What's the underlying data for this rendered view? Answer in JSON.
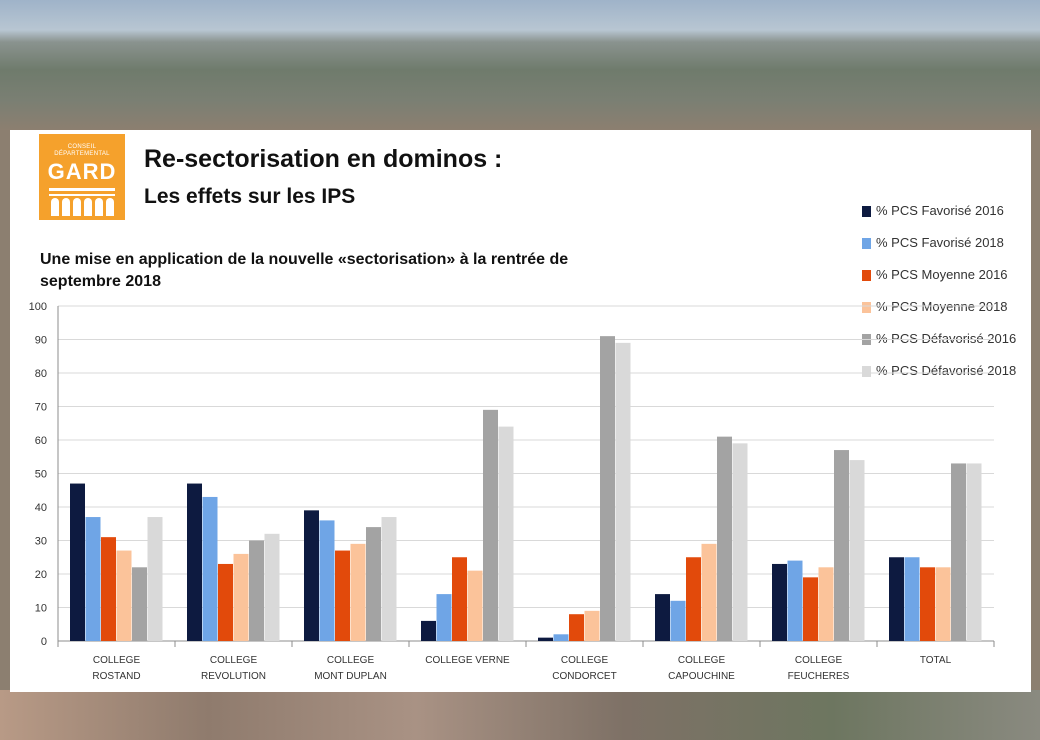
{
  "header": {
    "logo_top_line1": "CONSEIL",
    "logo_top_line2": "DÉPARTEMENTAL",
    "logo_main": "GARD",
    "title": "Re-sectorisation en dominos :",
    "subtitle": "Les effets sur les IPS",
    "description": "Une mise en application de la nouvelle «sectorisation» à la rentrée de septembre 2018"
  },
  "colors": {
    "brand_orange": "#f5a12c",
    "panel": "#ffffff"
  },
  "chart_data": {
    "type": "bar",
    "title": "",
    "xlabel": "",
    "ylabel": "",
    "ylim": [
      0,
      100
    ],
    "yticks": [
      0,
      10,
      20,
      30,
      40,
      50,
      60,
      70,
      80,
      90,
      100
    ],
    "grid": true,
    "legend_position": "right",
    "categories": [
      [
        "COLLEGE",
        "ROSTAND"
      ],
      [
        "COLLEGE",
        "REVOLUTION"
      ],
      [
        "COLLEGE",
        "MONT DUPLAN"
      ],
      [
        "COLLEGE VERNE"
      ],
      [
        "COLLEGE",
        "CONDORCET"
      ],
      [
        "COLLEGE",
        "CAPOUCHINE"
      ],
      [
        "COLLEGE",
        "FEUCHERES"
      ],
      [
        "TOTAL"
      ]
    ],
    "series": [
      {
        "name": "% PCS Favorisé 2016",
        "color": "#0d1a40",
        "values": [
          47,
          47,
          39,
          6,
          1,
          14,
          23,
          25
        ]
      },
      {
        "name": "% PCS Favorisé 2018",
        "color": "#6fa5e6",
        "values": [
          37,
          43,
          36,
          14,
          2,
          12,
          24,
          25
        ]
      },
      {
        "name": "% PCS Moyenne 2016",
        "color": "#e24a0b",
        "values": [
          31,
          23,
          27,
          25,
          8,
          25,
          19,
          22
        ]
      },
      {
        "name": "% PCS Moyenne 2018",
        "color": "#fbc39a",
        "values": [
          27,
          26,
          29,
          21,
          9,
          29,
          22,
          22
        ]
      },
      {
        "name": "% PCS Défavorisé 2016",
        "color": "#a3a3a3",
        "values": [
          22,
          30,
          34,
          69,
          91,
          61,
          57,
          53
        ]
      },
      {
        "name": "% PCS Défavorisé 2018",
        "color": "#d9d9d9",
        "values": [
          37,
          32,
          37,
          64,
          89,
          59,
          54,
          53
        ]
      }
    ]
  }
}
